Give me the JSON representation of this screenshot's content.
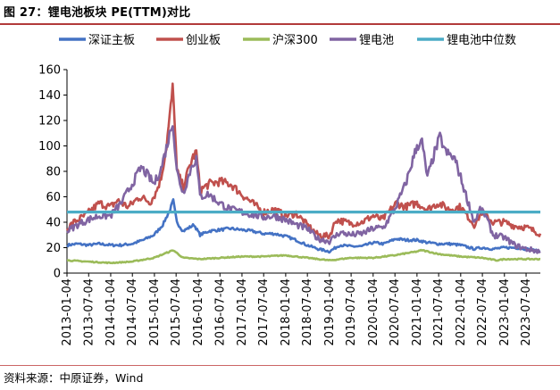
{
  "figure": {
    "title": "图 27：锂电池板块 PE(TTM)对比",
    "source": "资料来源：中原证券，Wind"
  },
  "chart_data": {
    "type": "line",
    "title": "",
    "xlabel": "",
    "ylabel": "",
    "ylim": [
      0,
      160
    ],
    "yticks": [
      0,
      20,
      40,
      60,
      80,
      100,
      120,
      140,
      160
    ],
    "xticks": [
      "2013-01-04",
      "2013-07-04",
      "2014-01-04",
      "2014-07-04",
      "2015-01-04",
      "2015-07-04",
      "2016-01-04",
      "2016-07-04",
      "2017-01-04",
      "2017-07-04",
      "2018-01-04",
      "2018-07-04",
      "2019-01-04",
      "2019-07-04",
      "2020-01-04",
      "2020-07-04",
      "2021-01-04",
      "2021-07-04",
      "2022-01-04",
      "2022-07-04",
      "2023-01-04",
      "2023-07-04"
    ],
    "xlim": [
      "2013-01-04",
      "2023-10-31"
    ],
    "legend_position": "top",
    "grid": false,
    "series": [
      {
        "name": "深证主板",
        "color": "#4472c4",
        "points": [
          [
            "2013-01-04",
            22
          ],
          [
            "2013-04-01",
            23
          ],
          [
            "2013-07-01",
            22
          ],
          [
            "2013-10-01",
            23
          ],
          [
            "2014-01-01",
            22
          ],
          [
            "2014-04-01",
            22
          ],
          [
            "2014-07-01",
            23
          ],
          [
            "2014-10-01",
            26
          ],
          [
            "2015-01-01",
            30
          ],
          [
            "2015-03-15",
            38
          ],
          [
            "2015-05-15",
            50
          ],
          [
            "2015-06-10",
            57
          ],
          [
            "2015-07-10",
            40
          ],
          [
            "2015-09-01",
            33
          ],
          [
            "2015-12-01",
            38
          ],
          [
            "2016-01-20",
            30
          ],
          [
            "2016-04-01",
            33
          ],
          [
            "2016-07-01",
            34
          ],
          [
            "2016-10-01",
            35
          ],
          [
            "2017-01-01",
            34
          ],
          [
            "2017-04-01",
            33
          ],
          [
            "2017-07-01",
            31
          ],
          [
            "2017-10-01",
            31
          ],
          [
            "2018-01-01",
            29
          ],
          [
            "2018-04-01",
            26
          ],
          [
            "2018-07-01",
            22
          ],
          [
            "2018-10-01",
            19
          ],
          [
            "2019-01-04",
            17
          ],
          [
            "2019-04-01",
            22
          ],
          [
            "2019-07-01",
            21
          ],
          [
            "2019-10-01",
            21
          ],
          [
            "2020-01-04",
            24
          ],
          [
            "2020-04-01",
            23
          ],
          [
            "2020-07-15",
            27
          ],
          [
            "2020-10-01",
            26
          ],
          [
            "2021-01-04",
            26
          ],
          [
            "2021-04-01",
            24
          ],
          [
            "2021-07-01",
            23
          ],
          [
            "2021-10-01",
            23
          ],
          [
            "2022-01-04",
            22
          ],
          [
            "2022-04-27",
            19
          ],
          [
            "2022-07-01",
            20
          ],
          [
            "2022-10-01",
            19
          ],
          [
            "2023-01-04",
            20
          ],
          [
            "2023-04-01",
            20
          ],
          [
            "2023-07-01",
            19
          ],
          [
            "2023-10-31",
            17
          ]
        ]
      },
      {
        "name": "创业板",
        "color": "#c0504d",
        "points": [
          [
            "2013-01-04",
            35
          ],
          [
            "2013-03-01",
            40
          ],
          [
            "2013-06-01",
            45
          ],
          [
            "2013-08-01",
            50
          ],
          [
            "2013-10-01",
            55
          ],
          [
            "2014-01-01",
            52
          ],
          [
            "2014-03-01",
            57
          ],
          [
            "2014-06-01",
            52
          ],
          [
            "2014-09-01",
            60
          ],
          [
            "2014-12-01",
            56
          ],
          [
            "2015-01-15",
            63
          ],
          [
            "2015-03-01",
            75
          ],
          [
            "2015-04-15",
            100
          ],
          [
            "2015-05-20",
            130
          ],
          [
            "2015-06-05",
            145
          ],
          [
            "2015-06-25",
            115
          ],
          [
            "2015-07-10",
            80
          ],
          [
            "2015-09-01",
            68
          ],
          [
            "2015-11-15",
            90
          ],
          [
            "2015-12-20",
            95
          ],
          [
            "2016-01-20",
            65
          ],
          [
            "2016-04-01",
            70
          ],
          [
            "2016-07-01",
            72
          ],
          [
            "2016-10-01",
            70
          ],
          [
            "2017-01-01",
            62
          ],
          [
            "2017-04-01",
            55
          ],
          [
            "2017-07-01",
            48
          ],
          [
            "2017-10-01",
            50
          ],
          [
            "2018-01-01",
            45
          ],
          [
            "2018-04-01",
            47
          ],
          [
            "2018-07-01",
            38
          ],
          [
            "2018-10-01",
            30
          ],
          [
            "2019-01-04",
            29
          ],
          [
            "2019-03-01",
            42
          ],
          [
            "2019-07-01",
            39
          ],
          [
            "2019-10-01",
            40
          ],
          [
            "2020-01-04",
            45
          ],
          [
            "2020-03-20",
            42
          ],
          [
            "2020-07-15",
            55
          ],
          [
            "2020-10-01",
            52
          ],
          [
            "2021-01-04",
            55
          ],
          [
            "2021-04-01",
            50
          ],
          [
            "2021-07-01",
            55
          ],
          [
            "2021-10-01",
            50
          ],
          [
            "2022-01-04",
            52
          ],
          [
            "2022-04-27",
            38
          ],
          [
            "2022-07-01",
            48
          ],
          [
            "2022-10-01",
            40
          ],
          [
            "2023-01-04",
            40
          ],
          [
            "2023-04-01",
            37
          ],
          [
            "2023-07-01",
            36
          ],
          [
            "2023-10-31",
            31
          ]
        ]
      },
      {
        "name": "沪深300",
        "color": "#9bbb59",
        "points": [
          [
            "2013-01-04",
            10
          ],
          [
            "2013-07-01",
            9
          ],
          [
            "2014-01-01",
            8
          ],
          [
            "2014-07-01",
            9
          ],
          [
            "2015-01-01",
            12
          ],
          [
            "2015-06-10",
            18
          ],
          [
            "2015-09-01",
            12
          ],
          [
            "2016-01-20",
            11
          ],
          [
            "2016-07-01",
            12
          ],
          [
            "2017-01-01",
            13
          ],
          [
            "2017-07-01",
            13
          ],
          [
            "2018-01-01",
            14
          ],
          [
            "2018-07-01",
            12
          ],
          [
            "2019-01-04",
            10
          ],
          [
            "2019-07-01",
            12
          ],
          [
            "2020-01-04",
            12
          ],
          [
            "2020-07-01",
            14
          ],
          [
            "2021-01-04",
            17
          ],
          [
            "2021-02-15",
            18
          ],
          [
            "2021-07-01",
            15
          ],
          [
            "2022-01-04",
            13
          ],
          [
            "2022-07-01",
            12
          ],
          [
            "2022-10-31",
            10
          ],
          [
            "2023-01-04",
            11
          ],
          [
            "2023-07-01",
            11
          ],
          [
            "2023-10-31",
            11
          ]
        ]
      },
      {
        "name": "锂电池",
        "color": "#8064a2",
        "points": [
          [
            "2013-01-04",
            33
          ],
          [
            "2013-04-01",
            38
          ],
          [
            "2013-07-01",
            42
          ],
          [
            "2013-10-01",
            45
          ],
          [
            "2014-01-01",
            45
          ],
          [
            "2014-04-01",
            55
          ],
          [
            "2014-07-01",
            70
          ],
          [
            "2014-09-15",
            83
          ],
          [
            "2014-11-01",
            78
          ],
          [
            "2015-01-01",
            70
          ],
          [
            "2015-03-01",
            82
          ],
          [
            "2015-05-01",
            105
          ],
          [
            "2015-06-05",
            120
          ],
          [
            "2015-07-10",
            80
          ],
          [
            "2015-09-01",
            63
          ],
          [
            "2015-11-15",
            85
          ],
          [
            "2015-12-20",
            90
          ],
          [
            "2016-01-20",
            60
          ],
          [
            "2016-04-01",
            62
          ],
          [
            "2016-07-01",
            55
          ],
          [
            "2016-10-01",
            50
          ],
          [
            "2017-01-01",
            48
          ],
          [
            "2017-04-01",
            46
          ],
          [
            "2017-07-01",
            44
          ],
          [
            "2017-10-01",
            45
          ],
          [
            "2018-01-01",
            42
          ],
          [
            "2018-04-01",
            38
          ],
          [
            "2018-07-01",
            35
          ],
          [
            "2018-10-01",
            27
          ],
          [
            "2019-01-04",
            25
          ],
          [
            "2019-04-01",
            32
          ],
          [
            "2019-07-01",
            30
          ],
          [
            "2019-10-01",
            31
          ],
          [
            "2020-01-04",
            35
          ],
          [
            "2020-04-01",
            36
          ],
          [
            "2020-07-01",
            50
          ],
          [
            "2020-10-01",
            70
          ],
          [
            "2021-01-04",
            100
          ],
          [
            "2021-02-15",
            103
          ],
          [
            "2021-04-01",
            75
          ],
          [
            "2021-06-01",
            95
          ],
          [
            "2021-07-15",
            107
          ],
          [
            "2021-09-01",
            95
          ],
          [
            "2021-11-15",
            90
          ],
          [
            "2022-01-04",
            75
          ],
          [
            "2022-04-27",
            40
          ],
          [
            "2022-06-15",
            50
          ],
          [
            "2022-08-01",
            45
          ],
          [
            "2022-10-01",
            30
          ],
          [
            "2023-01-04",
            28
          ],
          [
            "2023-04-01",
            22
          ],
          [
            "2023-07-01",
            19
          ],
          [
            "2023-10-31",
            17
          ]
        ]
      },
      {
        "name": "锂电池中位数",
        "color": "#4bacc6",
        "points": [
          [
            "2013-01-04",
            48
          ],
          [
            "2023-10-31",
            48
          ]
        ]
      }
    ]
  }
}
